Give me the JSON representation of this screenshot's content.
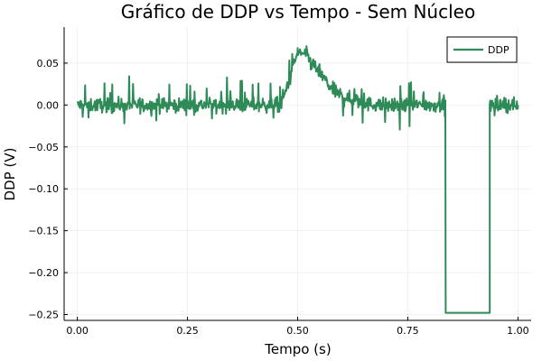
{
  "chart_data": {
    "type": "line",
    "title": "Gráfico de DDP vs Tempo - Sem Núcleo",
    "xlabel": "Tempo (s)",
    "ylabel": "DDP (V)",
    "xlim": [
      -0.03,
      1.03
    ],
    "ylim": [
      -0.257,
      0.093
    ],
    "xticks": [
      0.0,
      0.25,
      0.5,
      0.75,
      1.0
    ],
    "xtick_labels": [
      "0.00",
      "0.25",
      "0.50",
      "0.75",
      "1.00"
    ],
    "yticks": [
      0.05,
      0.0,
      -0.05,
      -0.1,
      -0.15,
      -0.2,
      -0.25
    ],
    "ytick_labels": [
      "0.05",
      "0.00",
      "−0.05",
      "−0.10",
      "−0.15",
      "−0.20",
      "−0.25"
    ],
    "grid": true,
    "legend_position": "top-right",
    "series": [
      {
        "name": "DDP",
        "color": "#2e8b57",
        "noise_amplitude": 0.01,
        "points": [
          [
            0.0,
            0.0
          ],
          [
            0.1,
            0.0
          ],
          [
            0.2,
            0.0
          ],
          [
            0.3,
            0.0
          ],
          [
            0.4,
            0.0
          ],
          [
            0.46,
            0.0
          ],
          [
            0.48,
            0.028
          ],
          [
            0.5,
            0.063
          ],
          [
            0.52,
            0.06
          ],
          [
            0.55,
            0.038
          ],
          [
            0.58,
            0.018
          ],
          [
            0.62,
            0.006
          ],
          [
            0.66,
            0.001
          ],
          [
            0.7,
            0.0
          ],
          [
            0.8,
            0.0
          ],
          [
            0.836,
            0.0
          ],
          [
            0.836,
            -0.248
          ],
          [
            0.936,
            -0.248
          ],
          [
            0.936,
            0.0
          ],
          [
            1.0,
            0.0
          ]
        ]
      }
    ]
  }
}
